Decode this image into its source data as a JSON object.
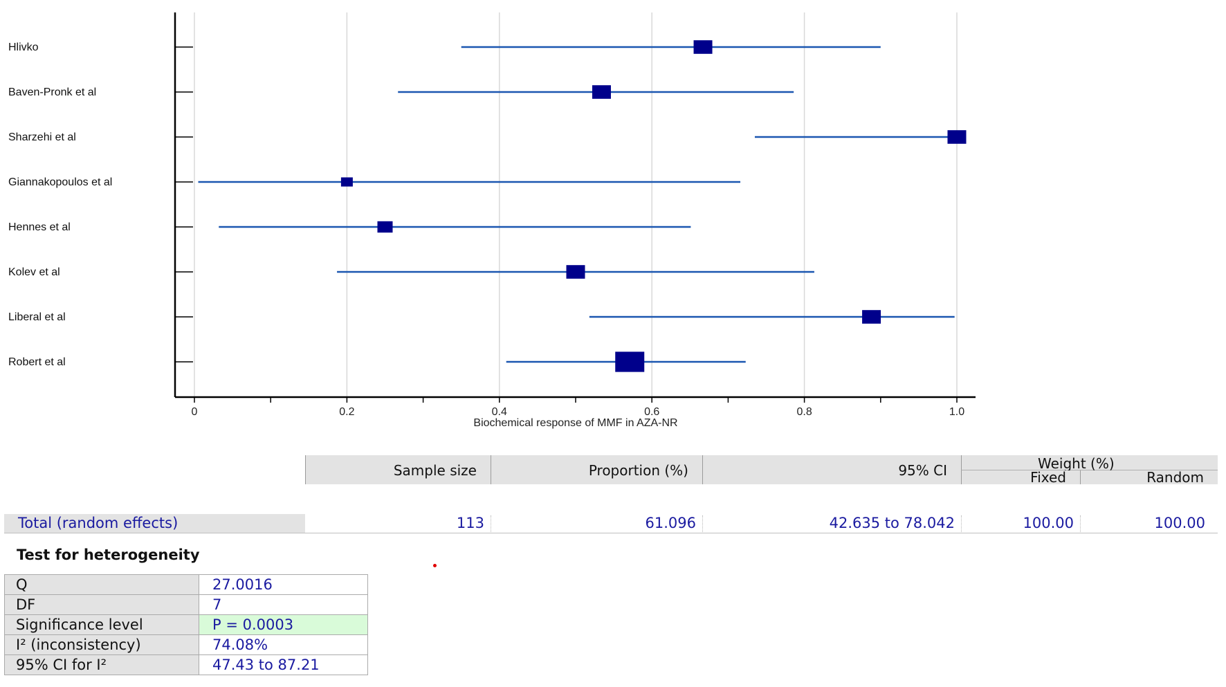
{
  "chart_data": {
    "type": "forest",
    "xlabel": "Biochemical response of MMF in AZA-NR",
    "xlim": [
      0,
      1.0
    ],
    "ticks": [
      "0",
      "0.2",
      "0.4",
      "0.6",
      "0.8",
      "1.0"
    ],
    "tick_values": [
      0,
      0.2,
      0.4,
      0.6,
      0.8,
      1.0
    ],
    "grid": true,
    "studies": [
      {
        "name": "Hlivko",
        "estimate": 0.667,
        "ci": [
          0.35,
          0.9
        ],
        "weight": 3
      },
      {
        "name": "Baven-Pronk et al",
        "estimate": 0.534,
        "ci": [
          0.267,
          0.786
        ],
        "weight": 3
      },
      {
        "name": "Sharzehi et al",
        "estimate": 1.0,
        "ci": [
          0.735,
          1.0
        ],
        "weight": 3
      },
      {
        "name": "Giannakopoulos et al",
        "estimate": 0.2,
        "ci": [
          0.005,
          0.716
        ],
        "weight": 1
      },
      {
        "name": "Hennes et al",
        "estimate": 0.25,
        "ci": [
          0.032,
          0.651
        ],
        "weight": 2
      },
      {
        "name": "Kolev et al",
        "estimate": 0.5,
        "ci": [
          0.187,
          0.813
        ],
        "weight": 3
      },
      {
        "name": "Liberal et al",
        "estimate": 0.888,
        "ci": [
          0.518,
          0.997
        ],
        "weight": 3
      },
      {
        "name": "Robert et al",
        "estimate": 0.571,
        "ci": [
          0.409,
          0.723
        ],
        "weight": 6
      }
    ],
    "colors": {
      "marker": "#00008b",
      "line": "#1a56b0",
      "grid": "#d8d8d8",
      "axis": "#000000"
    }
  },
  "summary_table": {
    "headers": {
      "sample_size": "Sample size",
      "proportion": "Proportion (%)",
      "ci95": "95% CI",
      "weight": "Weight (%)",
      "fixed": "Fixed",
      "random": "Random"
    },
    "row": {
      "label": "Total (random effects)",
      "sample_size": "113",
      "proportion": "61.096",
      "ci95": "42.635 to 78.042",
      "fixed": "100.00",
      "random": "100.00"
    }
  },
  "heterogeneity": {
    "title": "Test for heterogeneity",
    "rows": [
      {
        "label": "Q",
        "value": "27.0016"
      },
      {
        "label": "DF",
        "value": "7"
      },
      {
        "label": "Significance level",
        "value": "P = 0.0003"
      },
      {
        "label": "I² (inconsistency)",
        "value": "74.08%"
      },
      {
        "label": "95% CI for I²",
        "value": "47.43 to 87.21"
      }
    ]
  }
}
